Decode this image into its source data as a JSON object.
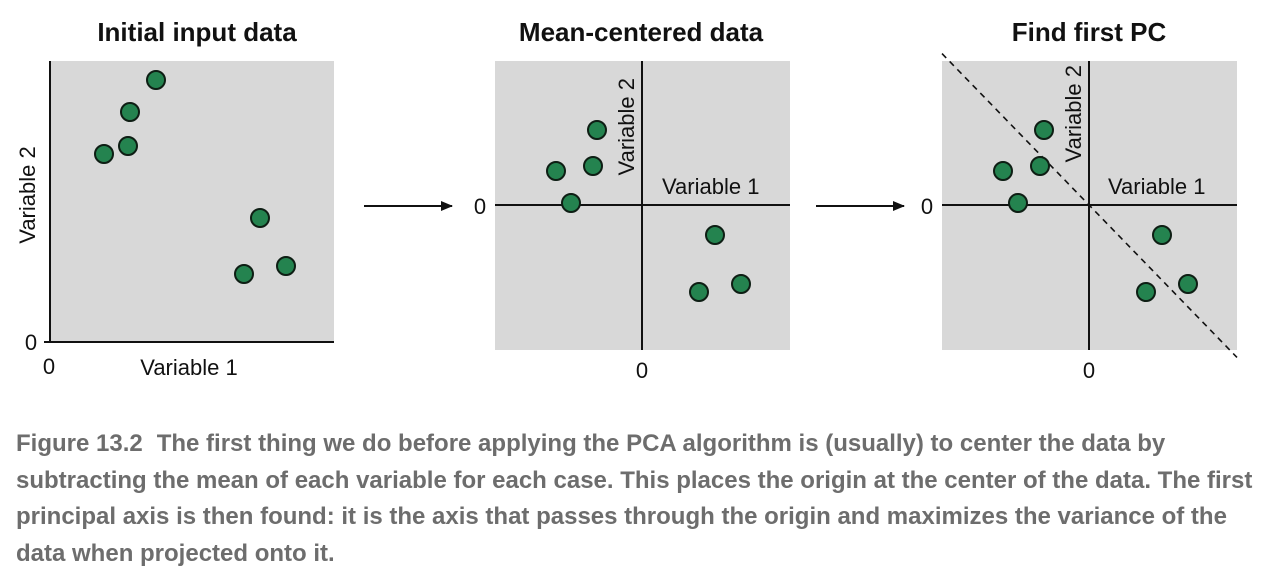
{
  "colors": {
    "panel_bg": "#d8d8d8",
    "point_fill": "#24834f",
    "point_stroke": "#0e1e14",
    "axis": "#111111",
    "caption_text": "#6d6d6d"
  },
  "panels": [
    {
      "title": "Initial input data",
      "xlabel": "Variable 1",
      "ylabel": "Variable 2",
      "origin_x_label": "0",
      "origin_y_label": "0",
      "points": [
        {
          "x": 80,
          "y": 230
        },
        {
          "x": 106,
          "y": 262
        },
        {
          "x": 78,
          "y": 196
        },
        {
          "x": 54,
          "y": 188
        },
        {
          "x": 210,
          "y": 124
        },
        {
          "x": 236,
          "y": 76
        },
        {
          "x": 194,
          "y": 68
        }
      ]
    },
    {
      "title": "Mean-centered data",
      "xlabel": "Variable 1",
      "ylabel": "Variable 2",
      "origin_x_label": "0",
      "origin_y_label": "0",
      "points": [
        {
          "x": -45,
          "y": 75
        },
        {
          "x": -49,
          "y": 39
        },
        {
          "x": -86,
          "y": 34
        },
        {
          "x": -71,
          "y": 2
        },
        {
          "x": 73,
          "y": -30
        },
        {
          "x": 99,
          "y": -79
        },
        {
          "x": 57,
          "y": -87
        }
      ]
    },
    {
      "title": "Find first PC",
      "xlabel": "Variable 1",
      "ylabel": "Variable 2",
      "origin_x_label": "0",
      "origin_y_label": "0",
      "pc_line": {
        "slope": -1.03
      },
      "points": [
        {
          "x": -45,
          "y": 75
        },
        {
          "x": -49,
          "y": 39
        },
        {
          "x": -86,
          "y": 34
        },
        {
          "x": -71,
          "y": 2
        },
        {
          "x": 73,
          "y": -30
        },
        {
          "x": 99,
          "y": -79
        },
        {
          "x": 57,
          "y": -87
        }
      ]
    }
  ],
  "caption": {
    "figure_number": "Figure 13.2",
    "text": "The first thing we do before applying the PCA algorithm is (usually) to center the data by subtracting the mean of each variable for each case. This places the origin at the center of the data. The first principal axis is then found: it is the axis that passes through the origin and maximizes the variance of the data when projected onto it."
  }
}
